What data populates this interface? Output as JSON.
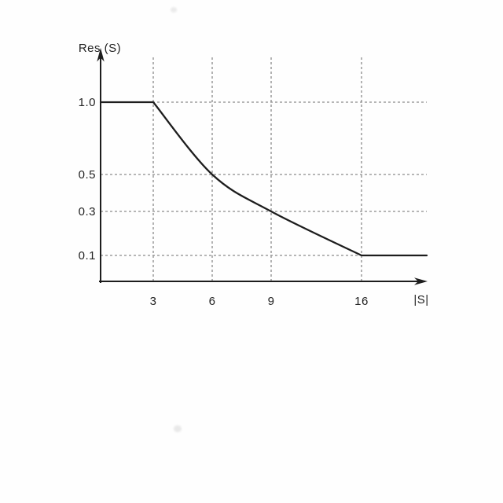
{
  "figure": {
    "background": "#fefefe",
    "line_color": "#1d1d1d",
    "grid_color": "#8a8a8a",
    "text_color": "#222222"
  },
  "chart_data": {
    "type": "line",
    "title": "",
    "xlabel": "|S|",
    "ylabel": "Res (S)",
    "x_tick_labels": [
      "3",
      "6",
      "9",
      "16"
    ],
    "x_tick_values": [
      3,
      6,
      9,
      16
    ],
    "y_tick_labels": [
      "1.0",
      "0.5",
      "0.3",
      "0.1"
    ],
    "y_tick_values": [
      1.0,
      0.5,
      0.3,
      0.1
    ],
    "grid": "dashed",
    "axis_arrows": true,
    "legend": "none",
    "series": [
      {
        "name": "Res(S) vs |S|",
        "points": [
          [
            0,
            1.0
          ],
          [
            3,
            1.0
          ],
          [
            6,
            0.5
          ],
          [
            9,
            0.3
          ],
          [
            16,
            0.1
          ]
        ],
        "flat_to_right_edge_after_x": 16
      }
    ]
  }
}
